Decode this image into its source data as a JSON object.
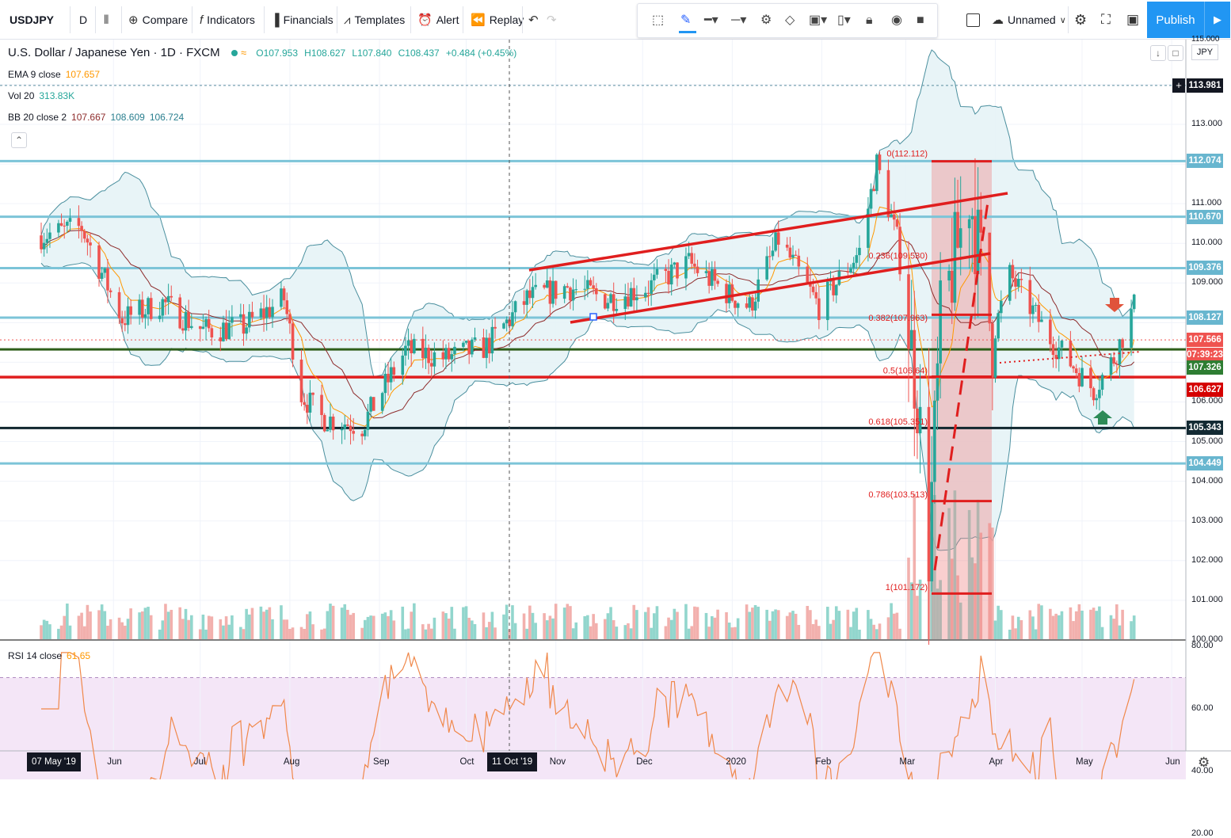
{
  "toolbar": {
    "symbol": "USDJPY",
    "interval": "D",
    "compare": "Compare",
    "indicators": "Indicators",
    "financials": "Financials",
    "templates": "Templates",
    "alert": "Alert",
    "replay": "Replay",
    "layout_name": "Unnamed",
    "publish": "Publish"
  },
  "legend": {
    "title": "U.S. Dollar / Japanese Yen · 1D · FXCM",
    "open": "O107.953",
    "high": "H108.627",
    "low": "L107.840",
    "close": "C108.437",
    "change": "+0.484 (+0.45%)",
    "ema_label": "EMA 9 close",
    "ema_value": "107.657",
    "vol_label": "Vol 20",
    "vol_value": "313.83K",
    "bb_label": "BB 20 close 2",
    "bb_values": [
      "107.667",
      "108.609",
      "106.724"
    ],
    "rsi_label": "RSI 14 close",
    "rsi_value": "61.65"
  },
  "currency": "JPY",
  "price_axis": {
    "top_cut": "115.000",
    "ticks": [
      "113.000",
      "112.000",
      "111.000",
      "110.000",
      "109.000",
      "108.000",
      "107.000",
      "106.000",
      "105.000",
      "104.000",
      "103.000",
      "102.000",
      "101.000",
      "100.000"
    ]
  },
  "price_tags": [
    {
      "label": "113.981",
      "color": "#131722",
      "price": 113.981
    },
    {
      "label": "112.074",
      "color": "#68b6cf",
      "price": 112.074
    },
    {
      "label": "110.670",
      "color": "#68b6cf",
      "price": 110.67
    },
    {
      "label": "109.376",
      "color": "#68b6cf",
      "price": 109.376
    },
    {
      "label": "108.127",
      "color": "#68b6cf",
      "price": 108.127
    },
    {
      "label": "107.566",
      "color": "#ef5350",
      "price": 107.566
    },
    {
      "label": "07:39:23",
      "color": "#ef5350",
      "price": 107.18
    },
    {
      "label": "107.326",
      "color": "#2e7d32",
      "price": 106.86
    },
    {
      "label": "106.627",
      "color": "#d50000",
      "price": 106.3
    },
    {
      "label": "105.343",
      "color": "#132a33",
      "price": 105.343
    },
    {
      "label": "104.449",
      "color": "#68b6cf",
      "price": 104.449
    }
  ],
  "fib_labels": [
    {
      "text": "0(112.112)",
      "price": 112.112
    },
    {
      "text": "0.236(109.530)",
      "price": 109.53
    },
    {
      "text": "0.382(107.963)",
      "price": 107.963
    },
    {
      "text": "0.5(106.64)",
      "price": 106.64
    },
    {
      "text": "0.618(105.351)",
      "price": 105.351
    },
    {
      "text": "0.786(103.513)",
      "price": 103.513
    },
    {
      "text": "1(101.172)",
      "price": 101.172
    }
  ],
  "rsi_axis": {
    "ticks": [
      "80.00",
      "60.00",
      "40.00",
      "20.00"
    ]
  },
  "time_axis": {
    "ticks": [
      "Jun",
      "Jul",
      "Aug",
      "Sep",
      "Oct",
      "Nov",
      "Dec",
      "2020",
      "Feb",
      "Mar",
      "Apr",
      "May",
      "Jun"
    ],
    "start_label": "07 May '19",
    "crosshair_label": "11 Oct '19"
  },
  "chart_data": {
    "type": "candlestick",
    "symbol": "USDJPY",
    "interval": "1D",
    "ylim": [
      100,
      115
    ],
    "horizontal_levels": [
      112.074,
      110.67,
      109.376,
      108.127,
      107.326,
      106.627,
      105.343,
      104.449
    ],
    "anchors": [
      [
        "2019-05-07",
        110.2
      ],
      [
        "2019-05-21",
        110.4
      ],
      [
        "2019-06-04",
        108.1
      ],
      [
        "2019-06-18",
        108.5
      ],
      [
        "2019-07-02",
        107.8
      ],
      [
        "2019-07-16",
        107.9
      ],
      [
        "2019-07-30",
        108.6
      ],
      [
        "2019-08-05",
        106.2
      ],
      [
        "2019-08-12",
        105.6
      ],
      [
        "2019-08-26",
        105.4
      ],
      [
        "2019-09-10",
        107.3
      ],
      [
        "2019-09-24",
        107.1
      ],
      [
        "2019-10-08",
        107.4
      ],
      [
        "2019-10-22",
        108.6
      ],
      [
        "2019-11-05",
        108.9
      ],
      [
        "2019-11-19",
        108.6
      ],
      [
        "2019-12-03",
        108.9
      ],
      [
        "2019-12-17",
        109.5
      ],
      [
        "2019-12-31",
        108.7
      ],
      [
        "2020-01-07",
        108.4
      ],
      [
        "2020-01-17",
        110.1
      ],
      [
        "2020-01-31",
        108.4
      ],
      [
        "2020-02-14",
        109.8
      ],
      [
        "2020-02-20",
        112.0
      ],
      [
        "2020-02-27",
        110.1
      ],
      [
        "2020-03-05",
        106.2
      ],
      [
        "2020-03-09",
        102.3
      ],
      [
        "2020-03-13",
        107.9
      ],
      [
        "2020-03-23",
        111.3
      ],
      [
        "2020-03-31",
        107.6
      ],
      [
        "2020-04-06",
        109.2
      ],
      [
        "2020-04-20",
        107.6
      ],
      [
        "2020-05-05",
        106.3
      ],
      [
        "2020-05-12",
        107.1
      ],
      [
        "2020-05-19",
        108.4
      ]
    ]
  }
}
